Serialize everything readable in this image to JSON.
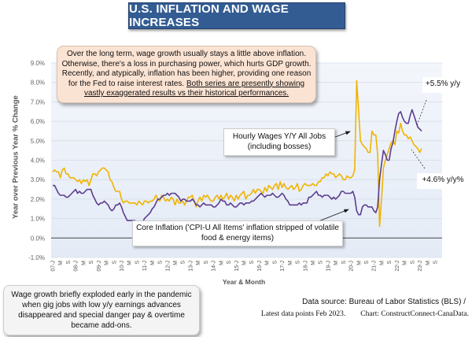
{
  "title": "U.S. INFLATION AND WAGE INCREASES",
  "annotations": {
    "top_note_plain": "Over the long term, wage growth usually stays a little above inflation. Otherwise, there's a loss in purchasing power, which hurts GDP growth. Recently, and atypically, inflation has been higher, providing one reason for the Fed to raise interest rates. ",
    "top_note_underlined": "Both series are presently showing vastly exaggerated results vs their historical performances.",
    "wages_label": "Hourly Wages Y/Y All Jobs (including bosses)",
    "core_label": "Core Inflation ('CPI-U All Items' inflation stripped of volatile food & energy items)",
    "end_label_upper": "+5.5% y/y",
    "end_label_lower": "+4.6% y/y%",
    "bottom_note": "Wage growth briefly exploded early in the pandemic when gig jobs with low y/y earnings advances disappeared and special danger pay & overtime became add-ons.",
    "source_line1": "Data source: Bureau of Labor Statistics (BLS) /",
    "source_line2": "Latest data points Feb 2023.        Chart: ConstructConnect-CanaData."
  },
  "colors": {
    "title_bg": "#335c93",
    "wages_line": "#f0b400",
    "core_line": "#5c3d8f",
    "plot_bg": "#e9eff8",
    "top_note_bg": "#fbe3d3"
  },
  "chart_data": {
    "type": "line",
    "xlabel": "Year & Month",
    "ylabel": "Year over Previous Year % Change",
    "ylim": [
      -1,
      9
    ],
    "y_ticks": [
      "-1.0%",
      "0.0%",
      "1.0%",
      "2.0%",
      "3.0%",
      "4.0%",
      "5.0%",
      "6.0%",
      "7.0%",
      "8.0%",
      "9.0%"
    ],
    "x_start": "2007-01",
    "x_end": "2023-02",
    "x_axis_end": "2023-09",
    "x_tick_labels": [
      "07-J",
      "M",
      "S",
      "08-J",
      "M",
      "S",
      "09-J",
      "M",
      "S",
      "10-J",
      "M",
      "S",
      "11-J",
      "M",
      "S",
      "12-J",
      "M",
      "S",
      "13-J",
      "M",
      "S",
      "14-J",
      "M",
      "S",
      "15-J",
      "M",
      "S",
      "16-J",
      "M",
      "S",
      "17-J",
      "M",
      "S",
      "18-J",
      "M",
      "S",
      "19-J",
      "M",
      "S",
      "20-J",
      "M",
      "S",
      "21-J",
      "M",
      "S",
      "22-J",
      "M",
      "S",
      "23-J",
      "M",
      "S"
    ],
    "grid": true,
    "legend": "none",
    "series": [
      {
        "key": "wages",
        "color": "#f0b400",
        "values": [
          3.4,
          3.5,
          3.4,
          3.4,
          3.1,
          3.5,
          3.6,
          3.3,
          3.3,
          3.1,
          3.1,
          3.1,
          3.0,
          2.9,
          3.0,
          2.8,
          3.0,
          2.9,
          3.0,
          2.7,
          3.0,
          3.3,
          3.3,
          3.2,
          3.4,
          3.5,
          3.6,
          3.6,
          3.5,
          3.4,
          3.0,
          2.9,
          2.6,
          2.4,
          2.4,
          2.4,
          2.0,
          1.8,
          1.9,
          1.9,
          1.8,
          1.8,
          1.8,
          1.8,
          1.7,
          1.9,
          1.8,
          1.7,
          1.9,
          1.9,
          1.8,
          1.9,
          1.9,
          2.0,
          2.2,
          2.0,
          1.9,
          2.2,
          2.1,
          1.9,
          2.0,
          1.9,
          2.1,
          2.0,
          1.7,
          2.0,
          1.8,
          1.8,
          1.9,
          1.7,
          1.9,
          2.1,
          2.1,
          2.2,
          1.9,
          1.6,
          1.9,
          2.1,
          1.9,
          2.2,
          2.1,
          2.2,
          2.0,
          1.9,
          1.9,
          2.1,
          2.2,
          2.0,
          2.2,
          2.0,
          2.1,
          2.3,
          2.0,
          2.2,
          2.1,
          1.9,
          2.2,
          2.0,
          2.2,
          2.3,
          2.4,
          2.0,
          2.2,
          2.2,
          2.3,
          2.5,
          2.3,
          2.5,
          2.5,
          2.4,
          2.3,
          2.6,
          2.4,
          2.7,
          2.6,
          2.5,
          2.7,
          2.8,
          2.5,
          2.9,
          2.6,
          2.8,
          2.6,
          2.5,
          2.6,
          2.7,
          2.5,
          2.6,
          2.8,
          2.4,
          2.5,
          2.7,
          2.8,
          2.7,
          2.7,
          2.7,
          2.8,
          2.7,
          2.7,
          2.9,
          2.9,
          3.1,
          3.1,
          3.3,
          3.2,
          3.4,
          3.3,
          3.3,
          3.1,
          3.2,
          3.3,
          3.2,
          3.0,
          3.0,
          3.2,
          3.1,
          3.1,
          3.2,
          3.5,
          8.1,
          6.6,
          5.0,
          4.8,
          4.7,
          4.6,
          4.4,
          4.4,
          5.5,
          5.3,
          5.3,
          4.3,
          0.6,
          2.0,
          3.6,
          4.0,
          4.3,
          4.6,
          4.9,
          5.0,
          4.8,
          5.5,
          5.4,
          5.9,
          5.5,
          5.3,
          5.3,
          5.1,
          5.2,
          5.0,
          4.8,
          4.7,
          4.6,
          4.4,
          4.6
        ]
      },
      {
        "key": "core",
        "color": "#5c3d8f",
        "values": [
          2.7,
          2.7,
          2.5,
          2.3,
          2.2,
          2.2,
          2.2,
          2.1,
          2.1,
          2.2,
          2.3,
          2.4,
          2.5,
          2.3,
          2.4,
          2.3,
          2.3,
          2.4,
          2.5,
          2.5,
          2.5,
          2.2,
          2.0,
          1.8,
          1.7,
          1.8,
          1.8,
          1.9,
          1.8,
          1.7,
          1.5,
          1.4,
          1.5,
          1.7,
          1.7,
          1.8,
          1.6,
          1.3,
          1.1,
          0.9,
          0.9,
          0.9,
          0.9,
          0.9,
          0.8,
          0.6,
          0.8,
          0.8,
          1.0,
          1.1,
          1.2,
          1.3,
          1.5,
          1.6,
          1.8,
          2.0,
          2.0,
          2.1,
          2.2,
          2.2,
          2.3,
          2.2,
          2.3,
          2.3,
          2.3,
          2.2,
          2.1,
          1.9,
          2.0,
          2.0,
          1.9,
          1.9,
          1.9,
          2.0,
          1.9,
          1.7,
          1.7,
          1.6,
          1.7,
          1.8,
          1.7,
          1.7,
          1.7,
          1.7,
          1.6,
          1.6,
          1.7,
          1.8,
          2.0,
          1.9,
          1.9,
          1.7,
          1.7,
          1.8,
          1.7,
          1.6,
          1.6,
          1.7,
          1.8,
          1.8,
          1.7,
          1.8,
          1.8,
          1.8,
          1.9,
          1.9,
          2.0,
          2.1,
          2.2,
          2.3,
          2.2,
          2.1,
          2.2,
          2.2,
          2.2,
          2.3,
          2.2,
          2.1,
          2.1,
          2.2,
          2.3,
          2.2,
          2.0,
          1.9,
          1.7,
          1.7,
          1.7,
          1.7,
          1.7,
          1.8,
          1.7,
          1.8,
          1.8,
          1.8,
          2.1,
          2.1,
          2.2,
          2.3,
          2.4,
          2.2,
          2.2,
          2.1,
          2.2,
          2.2,
          2.2,
          2.1,
          2.0,
          2.1,
          2.0,
          2.1,
          2.2,
          2.4,
          2.4,
          2.3,
          2.3,
          2.3,
          2.3,
          2.4,
          2.1,
          1.4,
          1.2,
          1.2,
          1.6,
          1.7,
          1.7,
          1.6,
          1.6,
          1.6,
          1.4,
          1.3,
          1.6,
          3.0,
          3.8,
          4.5,
          4.3,
          4.0,
          4.0,
          4.6,
          4.9,
          5.5,
          6.0,
          6.4,
          6.5,
          6.2,
          6.0,
          5.9,
          5.9,
          6.3,
          6.6,
          6.3,
          6.0,
          5.7,
          5.6,
          5.5
        ]
      }
    ]
  }
}
